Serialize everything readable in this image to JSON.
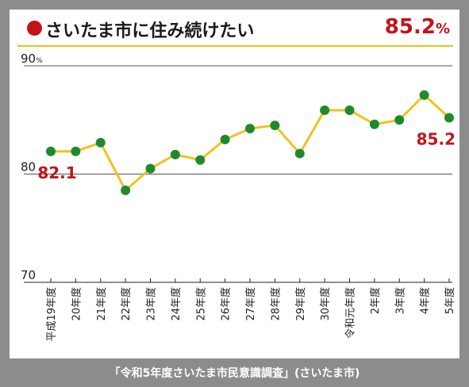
{
  "title": {
    "text": "さいたま市に住み続けたい",
    "headline_value": "85.2",
    "headline_unit": "%"
  },
  "footer": {
    "source": "「令和5年度さいたま市民意識調査」(さいたま市)"
  },
  "colors": {
    "line": "#f2c21b",
    "marker": "#1f8a2c",
    "accent": "#c4121a",
    "frame": "#8c8c8c",
    "grid": "#555555"
  },
  "chart_data": {
    "type": "line",
    "categories": [
      "平成19年度",
      "20年度",
      "21年度",
      "22年度",
      "23年度",
      "24年度",
      "25年度",
      "26年度",
      "27年度",
      "28年度",
      "29年度",
      "30年度",
      "令和元年度",
      "2年度",
      "3年度",
      "4年度",
      "5年度"
    ],
    "values": [
      82.1,
      82.1,
      82.9,
      78.5,
      80.5,
      81.8,
      81.3,
      83.2,
      84.2,
      84.5,
      81.9,
      85.9,
      85.9,
      84.6,
      85.0,
      87.3,
      85.2
    ],
    "ylim": [
      70,
      90
    ],
    "y_ticks": [
      "70",
      "80",
      "90"
    ],
    "y_unit": "%",
    "grid": true,
    "annotations": [
      {
        "index": 0,
        "text": "82.1"
      },
      {
        "index": 16,
        "text": "85.2"
      }
    ]
  }
}
